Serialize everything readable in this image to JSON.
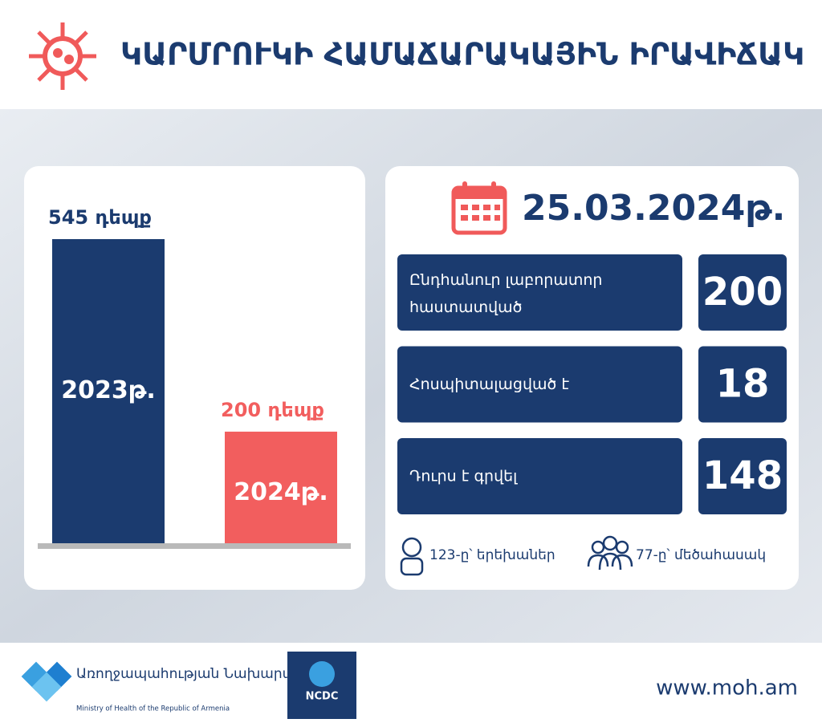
{
  "header": {
    "title": "ԿԱՐՄՐՈՒԿԻ ՀԱՄԱՃԱՐԱԿԱՅԻՆ ԻՐԱՎԻՃԱԿ"
  },
  "chart_data": {
    "type": "bar",
    "categories": [
      "2023թ.",
      "2024թ."
    ],
    "values": [
      545,
      200
    ],
    "value_labels": [
      "545 դեպք",
      "200 դեպք"
    ],
    "colors": [
      "#1b3b6f",
      "#f25e5e"
    ]
  },
  "stats": {
    "date": "25.03.2024թ.",
    "rows": [
      {
        "label": "Ընդհանուր լաբորատոր հաստատված",
        "value": 200
      },
      {
        "label": "Հոսպիտալացված է",
        "value": 18
      },
      {
        "label": "Դուրս է գրվել",
        "value": 148
      }
    ],
    "children": "123-ը՝ երեխաներ",
    "adults": "77-ը՝ մեծահասակ"
  },
  "footer": {
    "ministry_am": "Առողջապահության Նախարարություն",
    "ministry_en": "Ministry of Health of the Republic of Armenia",
    "ncdc": "NCDC",
    "url": "www.moh.am"
  }
}
